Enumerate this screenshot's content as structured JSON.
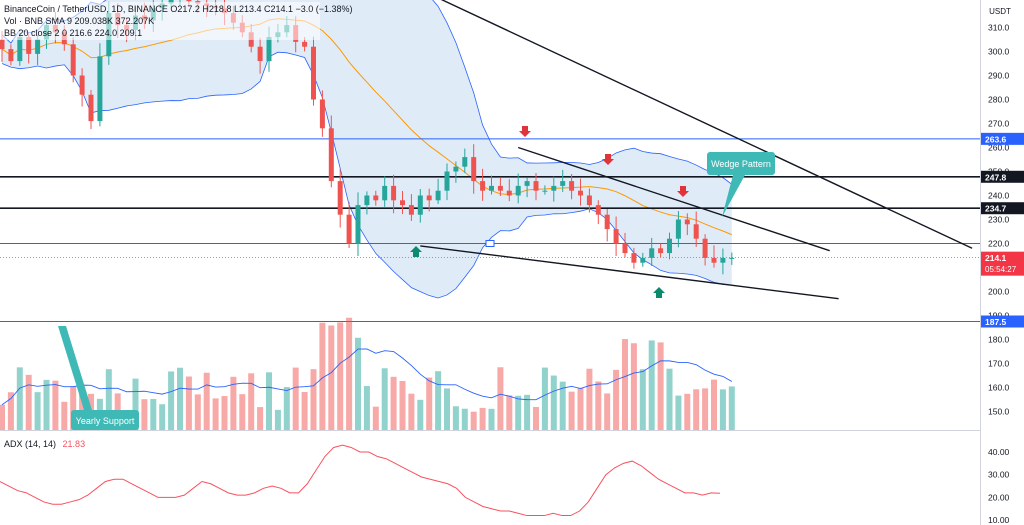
{
  "header": {
    "line1": "BinanceCoin / TetherUSD, 1D, BINANCE  O217.2  H218.8  L213.4  C214.1  −3.0 (−1.38%)",
    "line2": "Vol · BNB  SMA 9  209.038K  372.207K",
    "line3": "BB  20  close  2  0  216.6  224.0  209.1"
  },
  "price_axis": {
    "unit_label": "USDT",
    "ticks": [
      "310.0",
      "300.0",
      "290.0",
      "280.0",
      "270.0",
      "260.0",
      "250.0",
      "240.0",
      "230.0",
      "220.0",
      "210.0",
      "200.0",
      "190.0",
      "180.0",
      "170.0",
      "160.0",
      "150.0"
    ]
  },
  "level_tags": [
    {
      "value": "263.6",
      "kind": "blue"
    },
    {
      "value": "247.8",
      "kind": "black"
    },
    {
      "value": "234.7",
      "kind": "black"
    },
    {
      "value": "187.5",
      "kind": "blue"
    }
  ],
  "current_price": {
    "value": "214.1",
    "countdown": "05:54:27",
    "color": "#f23645"
  },
  "annotations": {
    "wedge_label": "Wedge Pattern",
    "support_label": "Yearly Support"
  },
  "adx": {
    "label": "ADX (14, 14)",
    "value": "21.83",
    "ticks": [
      "40.00",
      "30.00",
      "20.00",
      "10.00"
    ]
  },
  "colors": {
    "up": "#26a69a",
    "down": "#ef5350",
    "bb_fill": "#d1e4f5",
    "bb_line": "#2962ff",
    "basis": "#ff9800",
    "hline_blue": "#2962ff",
    "adx_line": "#f7525f",
    "callout": "#3fb9b6"
  },
  "chart_data": [
    {
      "type": "candlestick",
      "title": "BinanceCoin / TetherUSD, 1D, BINANCE",
      "ylabel": "USDT",
      "ylim": [
        196,
        316
      ],
      "close_series": [
        301,
        296,
        306,
        299,
        305,
        311,
        308,
        303,
        290,
        282,
        271,
        298,
        316,
        311,
        309,
        315,
        313,
        318,
        320,
        322,
        323,
        321,
        320,
        319,
        318,
        316,
        312,
        308,
        302,
        296,
        306,
        308,
        311,
        304,
        302,
        280,
        268,
        246,
        232,
        220,
        236,
        240,
        238,
        244,
        238,
        236,
        232,
        240,
        238,
        242,
        250,
        252,
        256,
        246,
        242,
        244,
        242,
        240,
        244,
        246,
        242,
        242,
        244,
        246,
        242,
        240,
        236,
        232,
        226,
        220,
        216,
        212,
        214,
        218,
        216,
        222,
        230,
        228,
        222,
        214,
        212,
        214,
        214
      ],
      "horizontal_levels": [
        263.6,
        247.8,
        234.7,
        220.0,
        187.5
      ],
      "current_close": 214.1,
      "wedge_upper_line": [
        [
          14,
          311
        ],
        [
          83,
          219
        ]
      ],
      "wedge_lower_line": [
        [
          39,
          220
        ],
        [
          83,
          201
        ]
      ],
      "descending_resistance": [
        [
          37,
          330
        ],
        [
          83,
          221
        ]
      ],
      "bollinger": {
        "length": 20,
        "stdev": 2,
        "basis": 216.6,
        "upper": 224.0,
        "lower": 209.1
      }
    },
    {
      "type": "bar",
      "title": "Vol · BNB",
      "ylabel": "Volume",
      "sma_length": 9,
      "sma_value": "209.038K",
      "last_volume": "372.207K"
    },
    {
      "type": "line",
      "title": "ADX (14, 14)",
      "ylim": [
        8,
        45
      ],
      "values": [
        27,
        25,
        23,
        22,
        20,
        18,
        17,
        17,
        18,
        19,
        21,
        24,
        27,
        28,
        28,
        26,
        24,
        22,
        20,
        20,
        20,
        21,
        24,
        27,
        26,
        24,
        22,
        21,
        21,
        22,
        24,
        25,
        24,
        22,
        22,
        26,
        32,
        38,
        42,
        43,
        42,
        40,
        40,
        38,
        37,
        35,
        33,
        31,
        29,
        28,
        27,
        26,
        24,
        20,
        18,
        16,
        15,
        14,
        14,
        13,
        12,
        12,
        12,
        13,
        12,
        12,
        14,
        18,
        24,
        30,
        33,
        35,
        36,
        34,
        31,
        28,
        26,
        24,
        22,
        22,
        21,
        22,
        21.83
      ]
    }
  ]
}
